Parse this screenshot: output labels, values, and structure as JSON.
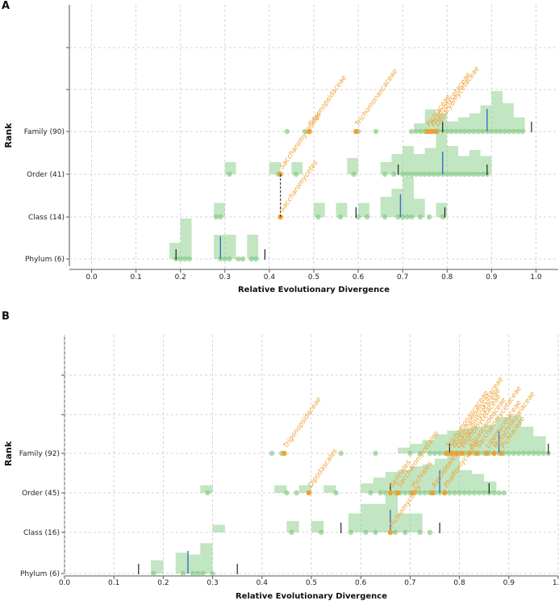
{
  "chart_data": [
    {
      "panel": "A",
      "type": "scatter",
      "xlabel": "Relative Evolutionary Divergence",
      "ylabel": "Rank",
      "xlim": [
        -0.05,
        1.05
      ],
      "xticks": [
        "0.0",
        "0.1",
        "0.2",
        "0.3",
        "0.4",
        "0.5",
        "0.6",
        "0.7",
        "0.8",
        "0.9",
        "1.0"
      ],
      "ranks": [
        "Phylum (6)",
        "Class (14)",
        "Order (41)",
        "Family (90)"
      ],
      "points": {
        "Phylum (6)": [
          0.19,
          0.2,
          0.21,
          0.22,
          0.29,
          0.3,
          0.31,
          0.33,
          0.34,
          0.36,
          0.37
        ],
        "Class (14)": [
          0.28,
          0.29,
          0.51,
          0.56,
          0.6,
          0.62,
          0.66,
          0.69,
          0.7,
          0.71,
          0.72,
          0.74,
          0.76,
          0.79
        ],
        "Order (41)": [
          0.31,
          0.42,
          0.46,
          0.59,
          0.66,
          0.68,
          0.7,
          0.71,
          0.72,
          0.73,
          0.74,
          0.75,
          0.76,
          0.77,
          0.78,
          0.79,
          0.8,
          0.81,
          0.82,
          0.83,
          0.84,
          0.85,
          0.86,
          0.87,
          0.88,
          0.89
        ],
        "Family (90)": [
          0.44,
          0.48,
          0.6,
          0.64,
          0.72,
          0.73,
          0.74,
          0.75,
          0.76,
          0.77,
          0.78,
          0.79,
          0.8,
          0.81,
          0.82,
          0.83,
          0.84,
          0.85,
          0.86,
          0.87,
          0.88,
          0.89,
          0.9,
          0.91,
          0.92,
          0.93,
          0.94,
          0.95,
          0.96,
          0.97
        ]
      },
      "histogram": {
        "bin_width": 0.025,
        "Phylum (6)": [
          [
            0.175,
            0.4
          ],
          [
            0.2,
            1.0
          ],
          [
            0.275,
            0.6
          ],
          [
            0.3,
            0.6
          ],
          [
            0.35,
            0.6
          ]
        ],
        "Class (14)": [
          [
            0.275,
            0.35
          ],
          [
            0.5,
            0.35
          ],
          [
            0.55,
            0.35
          ],
          [
            0.6,
            0.35
          ],
          [
            0.65,
            0.5
          ],
          [
            0.675,
            0.7
          ],
          [
            0.7,
            1.0
          ],
          [
            0.725,
            0.45
          ],
          [
            0.775,
            0.35
          ]
        ],
        "Order (41)": [
          [
            0.3,
            0.3
          ],
          [
            0.4,
            0.3
          ],
          [
            0.45,
            0.3
          ],
          [
            0.575,
            0.4
          ],
          [
            0.65,
            0.3
          ],
          [
            0.675,
            0.5
          ],
          [
            0.7,
            0.7
          ],
          [
            0.725,
            0.5
          ],
          [
            0.75,
            0.65
          ],
          [
            0.775,
            1.0
          ],
          [
            0.8,
            0.7
          ],
          [
            0.825,
            0.45
          ],
          [
            0.85,
            0.6
          ],
          [
            0.875,
            0.45
          ]
        ],
        "Family (90)": [
          [
            0.725,
            0.2
          ],
          [
            0.75,
            0.55
          ],
          [
            0.775,
            0.45
          ],
          [
            0.8,
            0.25
          ],
          [
            0.825,
            0.35
          ],
          [
            0.85,
            0.45
          ],
          [
            0.875,
            0.65
          ],
          [
            0.9,
            1.0
          ],
          [
            0.925,
            0.7
          ],
          [
            0.95,
            0.35
          ]
        ]
      },
      "medians": {
        "Phylum (6)": 0.29,
        "Class (14)": 0.695,
        "Order (41)": 0.79,
        "Family (90)": 0.89
      },
      "percentile_bars": {
        "Phylum (6)": [
          0.19,
          0.39
        ],
        "Class (14)": [
          0.595,
          0.795
        ],
        "Order (41)": [
          0.69,
          0.89
        ],
        "Family (90)": [
          0.79,
          0.99
        ]
      },
      "highlighted_taxa": [
        {
          "label": "Trigonopsidaceae",
          "rank": "Family (90)",
          "red": 0.49
        },
        {
          "label": "Trichomonascaceae",
          "rank": "Family (90)",
          "red": 0.595
        },
        {
          "label": "Pichiaceae",
          "rank": "Family (90)",
          "red": 0.755
        },
        {
          "label": "Phaffomycetaceae",
          "rank": "Family (90)",
          "red": 0.765
        },
        {
          "label": "Debaryomycetaceae",
          "rank": "Family (90)",
          "red": 0.775
        },
        {
          "label": "Saccharomycetales",
          "rank": "Order (41)",
          "red": 0.425
        },
        {
          "label": "Saccharomycetes",
          "rank": "Class (14)",
          "red": 0.425
        }
      ]
    },
    {
      "panel": "B",
      "type": "scatter",
      "xlabel": "Relative Evolutionary Divergence",
      "ylabel": "Rank",
      "xlim": [
        0.0,
        1.0
      ],
      "xticks": [
        "0.0",
        "0.1",
        "0.2",
        "0.3",
        "0.4",
        "0.5",
        "0.6",
        "0.7",
        "0.8",
        "0.9",
        "1.0"
      ],
      "ranks": [
        "Phylum (6)",
        "Class (16)",
        "Order (45)",
        "Family (92)"
      ],
      "points": {
        "Phylum (6)": [
          0.18,
          0.24,
          0.26,
          0.27,
          0.28,
          0.3
        ],
        "Class (16)": [
          0.46,
          0.52,
          0.58,
          0.61,
          0.63,
          0.66,
          0.67,
          0.69,
          0.72,
          0.74
        ],
        "Order (45)": [
          0.29,
          0.45,
          0.47,
          0.55,
          0.62,
          0.64,
          0.65,
          0.66,
          0.67,
          0.68,
          0.69,
          0.7,
          0.71,
          0.72,
          0.73,
          0.74,
          0.75,
          0.76,
          0.77,
          0.78,
          0.79,
          0.8,
          0.81,
          0.82,
          0.83,
          0.84,
          0.85,
          0.86,
          0.87,
          0.88,
          0.89
        ],
        "Family (92)": [
          0.42,
          0.44,
          0.56,
          0.63,
          0.7,
          0.72,
          0.74,
          0.75,
          0.76,
          0.77,
          0.78,
          0.79,
          0.8,
          0.81,
          0.82,
          0.83,
          0.84,
          0.85,
          0.86,
          0.87,
          0.88,
          0.89,
          0.9,
          0.91,
          0.92,
          0.93,
          0.94,
          0.95,
          0.96,
          0.97,
          0.98
        ]
      },
      "histogram": {
        "bin_width": 0.025,
        "Phylum (6)": [
          [
            0.175,
            0.35
          ],
          [
            0.225,
            0.55
          ],
          [
            0.25,
            0.5
          ],
          [
            0.275,
            0.8
          ]
        ],
        "Class (16)": [
          [
            0.3,
            0.2
          ],
          [
            0.45,
            0.3
          ],
          [
            0.5,
            0.3
          ],
          [
            0.575,
            0.5
          ],
          [
            0.6,
            0.75
          ],
          [
            0.625,
            0.75
          ],
          [
            0.65,
            1.0
          ],
          [
            0.675,
            0.5
          ],
          [
            0.7,
            0.5
          ]
        ],
        "Order (45)": [
          [
            0.275,
            0.2
          ],
          [
            0.425,
            0.2
          ],
          [
            0.475,
            0.2
          ],
          [
            0.525,
            0.2
          ],
          [
            0.6,
            0.25
          ],
          [
            0.625,
            0.4
          ],
          [
            0.65,
            0.55
          ],
          [
            0.675,
            0.6
          ],
          [
            0.7,
            0.7
          ],
          [
            0.725,
            0.75
          ],
          [
            0.75,
            0.9
          ],
          [
            0.775,
            1.0
          ],
          [
            0.8,
            0.6
          ],
          [
            0.825,
            0.5
          ],
          [
            0.85,
            0.3
          ]
        ],
        "Family (92)": [
          [
            0.675,
            0.15
          ],
          [
            0.7,
            0.25
          ],
          [
            0.725,
            0.35
          ],
          [
            0.75,
            0.5
          ],
          [
            0.775,
            0.6
          ],
          [
            0.8,
            0.65
          ],
          [
            0.825,
            0.7
          ],
          [
            0.85,
            0.75
          ],
          [
            0.875,
            0.95
          ],
          [
            0.9,
            1.0
          ],
          [
            0.925,
            0.7
          ],
          [
            0.95,
            0.45
          ]
        ]
      },
      "medians": {
        "Phylum (6)": 0.25,
        "Class (16)": 0.66,
        "Order (45)": 0.76,
        "Family (92)": 0.88
      },
      "percentile_bars": {
        "Phylum (6)": [
          0.15,
          0.35
        ],
        "Class (16)": [
          0.56,
          0.76
        ],
        "Order (45)": [
          0.66,
          0.86
        ],
        "Family (92)": [
          0.78,
          0.98
        ]
      },
      "highlighted_taxa": [
        {
          "label": "Trigonopsidaceae",
          "rank": "Family (92)",
          "red": 0.445
        },
        {
          "label": "Trichomonascaceae",
          "rank": "Family (92)",
          "red": 0.775
        },
        {
          "label": "Wickerhamomycetaceae",
          "rank": "Family (92)",
          "red": 0.785
        },
        {
          "label": "Debaryomycetaceae",
          "rank": "Family (92)",
          "red": 0.795
        },
        {
          "label": "Phaffomycetaceae",
          "rank": "Family (92)",
          "red": 0.805
        },
        {
          "label": "Alloascoideaceae",
          "rank": "Family (92)",
          "red": 0.82
        },
        {
          "label": "Saccharomycetaceae",
          "rank": "Family (92)",
          "red": 0.835
        },
        {
          "label": "Lipomycetaceae",
          "rank": "Family (92)",
          "red": 0.855
        },
        {
          "label": "Metschnikowiaceae",
          "rank": "Family (92)",
          "red": 0.87
        },
        {
          "label": "Pichiaceae",
          "rank": "Family (92)",
          "red": 0.885
        },
        {
          "label": "Dipodascales",
          "rank": "Order (45)",
          "red": 0.495
        },
        {
          "label": "Serinales",
          "rank": "Order (45)",
          "red": 0.66
        },
        {
          "label": "Saccharomycetales",
          "rank": "Order (45)",
          "red": 0.675
        },
        {
          "label": "Pichiales",
          "rank": "Order (45)",
          "red": 0.705
        },
        {
          "label": "Ascoideales",
          "rank": "Order (45)",
          "red": 0.745
        },
        {
          "label": "Phaffomycetales",
          "rank": "Order (45)",
          "red": 0.77
        },
        {
          "label": "Pichiomycetes",
          "rank": "Class (16)",
          "red": 0.66
        }
      ]
    }
  ],
  "panels": {
    "A": "A",
    "B": "B"
  },
  "colors": {
    "hist": "#90d090",
    "point": "#7fc97f",
    "median": "#3a6fc4",
    "percentile": "#222222",
    "highlight": "#f0a030",
    "grid": "#c8c8c8",
    "axis": "#555555"
  }
}
